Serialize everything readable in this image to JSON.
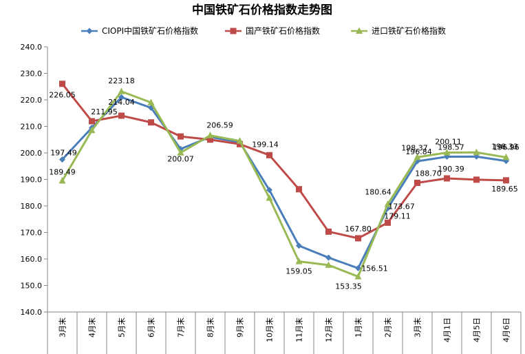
{
  "chart_data": {
    "type": "line",
    "title": "中国铁矿石价格指数走势图",
    "categories": [
      "3月末",
      "4月末",
      "5月末",
      "6月末",
      "7月末",
      "8月末",
      "9月末",
      "10月末",
      "11月末",
      "12月末",
      "1月末",
      "2月末",
      "3月末",
      "4月1日",
      "4月5日",
      "4月6日"
    ],
    "ylim": [
      140,
      240
    ],
    "yticks": [
      "140.0",
      "150.0",
      "160.0",
      "170.0",
      "180.0",
      "190.0",
      "200.0",
      "210.0",
      "220.0",
      "230.0",
      "240.0"
    ],
    "grid": false,
    "legend_position": "top",
    "series": [
      {
        "name": "CIOPI中国铁矿石价格指数",
        "color": "#4a7ebb",
        "marker": "diamond",
        "values": [
          197.49,
          209.5,
          221.0,
          217.0,
          201.5,
          206.0,
          204.0,
          186.0,
          165.0,
          160.5,
          156.51,
          179.11,
          196.84,
          198.57,
          198.6,
          196.96
        ],
        "labels": [
          "197.49",
          "",
          "",
          "",
          "",
          "",
          "",
          "",
          "",
          "",
          "156.51",
          "179.11",
          "196.84",
          "198.57",
          "",
          "196.96"
        ]
      },
      {
        "name": "国产铁矿石价格指数",
        "color": "#be4b48",
        "marker": "square",
        "values": [
          226.05,
          211.95,
          214.04,
          211.5,
          206.2,
          205.0,
          203.3,
          199.14,
          186.3,
          170.3,
          167.8,
          173.67,
          188.7,
          190.39,
          189.9,
          189.65
        ],
        "labels": [
          "226.05",
          "211.95",
          "214.04",
          "",
          "",
          "",
          "",
          "199.14",
          "",
          "",
          "167.80",
          "173.67",
          "188.70",
          "190.39",
          "",
          "189.65"
        ]
      },
      {
        "name": "进口铁矿石价格指数",
        "color": "#98b954",
        "marker": "triangle",
        "values": [
          189.49,
          208.5,
          223.18,
          219.0,
          200.07,
          206.59,
          204.5,
          183.0,
          159.05,
          157.7,
          153.35,
          180.64,
          198.37,
          200.11,
          200.2,
          198.33
        ],
        "labels": [
          "189.49",
          "",
          "223.18",
          "",
          "200.07",
          "206.59",
          "",
          "",
          "159.05",
          "",
          "153.35",
          "180.64",
          "198.37",
          "200.11",
          "",
          "198.33"
        ]
      }
    ]
  }
}
